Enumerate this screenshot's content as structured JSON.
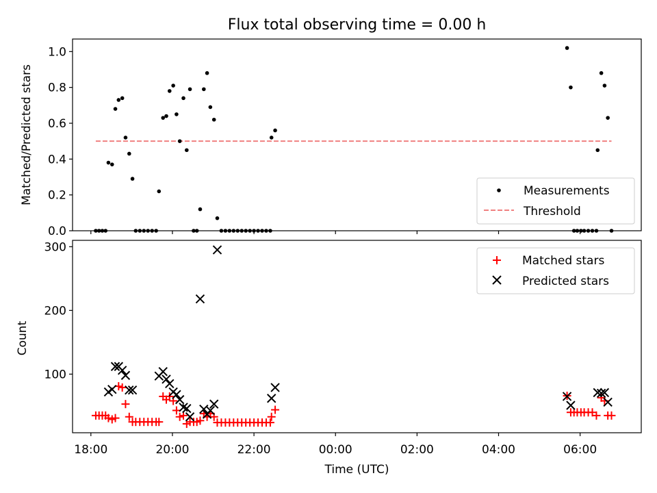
{
  "figure": {
    "title": "Flux total observing time = 0.00 h"
  },
  "chart_data": [
    {
      "type": "scatter",
      "panel": "top",
      "xlabel": "",
      "ylabel": "Matched/Predicted stars",
      "xlim": [
        17.55,
        31.5
      ],
      "ylim": [
        0,
        1.07
      ],
      "yticks": [
        0.0,
        0.2,
        0.4,
        0.6,
        0.8,
        1.0
      ],
      "ytick_labels": [
        "0.0",
        "0.2",
        "0.4",
        "0.6",
        "0.8",
        "1.0"
      ],
      "xticks": [
        18,
        20,
        22,
        24,
        26,
        28,
        30
      ],
      "show_xtick_labels": false,
      "grid": false,
      "legend": {
        "placement": "lower right",
        "entries": [
          "Measurements",
          "Threshold"
        ]
      },
      "threshold": {
        "name": "Threshold",
        "value": 0.5,
        "x_range": [
          18.12,
          30.77
        ],
        "color": "#f08080"
      },
      "series": [
        {
          "name": "Measurements",
          "color": "#000000",
          "points": [
            [
              18.12,
              0.0
            ],
            [
              18.2,
              0.0
            ],
            [
              18.28,
              0.0
            ],
            [
              18.36,
              0.0
            ],
            [
              18.43,
              0.38
            ],
            [
              18.52,
              0.37
            ],
            [
              18.6,
              0.68
            ],
            [
              18.68,
              0.73
            ],
            [
              18.77,
              0.74
            ],
            [
              18.85,
              0.52
            ],
            [
              18.94,
              0.43
            ],
            [
              19.02,
              0.29
            ],
            [
              19.1,
              0.0
            ],
            [
              19.2,
              0.0
            ],
            [
              19.3,
              0.0
            ],
            [
              19.4,
              0.0
            ],
            [
              19.5,
              0.0
            ],
            [
              19.6,
              0.0
            ],
            [
              19.67,
              0.22
            ],
            [
              19.77,
              0.63
            ],
            [
              19.85,
              0.64
            ],
            [
              19.93,
              0.78
            ],
            [
              20.02,
              0.81
            ],
            [
              20.1,
              0.65
            ],
            [
              20.18,
              0.5
            ],
            [
              20.27,
              0.74
            ],
            [
              20.35,
              0.45
            ],
            [
              20.43,
              0.79
            ],
            [
              20.52,
              0.0
            ],
            [
              20.6,
              0.0
            ],
            [
              20.68,
              0.12
            ],
            [
              20.77,
              0.79
            ],
            [
              20.85,
              0.88
            ],
            [
              20.93,
              0.69
            ],
            [
              21.02,
              0.62
            ],
            [
              21.1,
              0.07
            ],
            [
              21.2,
              0.0
            ],
            [
              21.3,
              0.0
            ],
            [
              21.4,
              0.0
            ],
            [
              21.5,
              0.0
            ],
            [
              21.6,
              0.0
            ],
            [
              21.7,
              0.0
            ],
            [
              21.8,
              0.0
            ],
            [
              21.9,
              0.0
            ],
            [
              22.0,
              0.0
            ],
            [
              22.1,
              0.0
            ],
            [
              22.2,
              0.0
            ],
            [
              22.3,
              0.0
            ],
            [
              22.4,
              0.0
            ],
            [
              22.43,
              0.52
            ],
            [
              22.52,
              0.56
            ],
            [
              29.68,
              1.02
            ],
            [
              29.77,
              0.8
            ],
            [
              29.85,
              0.0
            ],
            [
              29.93,
              0.0
            ],
            [
              30.02,
              0.0
            ],
            [
              30.1,
              0.0
            ],
            [
              30.2,
              0.0
            ],
            [
              30.3,
              0.0
            ],
            [
              30.4,
              0.0
            ],
            [
              30.43,
              0.45
            ],
            [
              30.52,
              0.88
            ],
            [
              30.6,
              0.81
            ],
            [
              30.68,
              0.63
            ],
            [
              30.77,
              0.0
            ]
          ]
        }
      ]
    },
    {
      "type": "scatter",
      "panel": "bottom",
      "xlabel": "Time (UTC)",
      "ylabel": "Count",
      "xlim": [
        17.55,
        31.5
      ],
      "ylim": [
        8,
        310
      ],
      "yticks": [
        100,
        200,
        300
      ],
      "ytick_labels": [
        "100",
        "200",
        "300"
      ],
      "xticks": [
        18,
        20,
        22,
        24,
        26,
        28,
        30
      ],
      "xtick_labels": [
        "18:00",
        "20:00",
        "22:00",
        "00:00",
        "02:00",
        "04:00",
        "06:00"
      ],
      "grid": false,
      "legend": {
        "placement": "upper right",
        "entries": [
          "Matched stars",
          "Predicted stars"
        ]
      },
      "series": [
        {
          "name": "Matched stars",
          "marker": "plus",
          "color": "#ff0000",
          "points": [
            [
              18.12,
              35
            ],
            [
              18.2,
              35
            ],
            [
              18.28,
              35
            ],
            [
              18.36,
              35
            ],
            [
              18.43,
              31
            ],
            [
              18.52,
              29
            ],
            [
              18.6,
              31
            ],
            [
              18.68,
              81
            ],
            [
              18.77,
              79
            ],
            [
              18.85,
              53
            ],
            [
              18.94,
              33
            ],
            [
              19.02,
              25
            ],
            [
              19.1,
              25
            ],
            [
              19.2,
              25
            ],
            [
              19.3,
              25
            ],
            [
              19.4,
              25
            ],
            [
              19.5,
              25
            ],
            [
              19.6,
              25
            ],
            [
              19.67,
              25
            ],
            [
              19.77,
              65
            ],
            [
              19.85,
              60
            ],
            [
              19.93,
              65
            ],
            [
              20.02,
              58
            ],
            [
              20.1,
              43
            ],
            [
              20.18,
              33
            ],
            [
              20.27,
              35
            ],
            [
              20.35,
              22
            ],
            [
              20.43,
              25
            ],
            [
              20.52,
              25
            ],
            [
              20.6,
              25
            ],
            [
              20.68,
              27
            ],
            [
              20.77,
              38
            ],
            [
              20.85,
              33
            ],
            [
              20.93,
              38
            ],
            [
              21.02,
              33
            ],
            [
              21.1,
              24
            ],
            [
              21.2,
              24
            ],
            [
              21.3,
              24
            ],
            [
              21.4,
              24
            ],
            [
              21.5,
              24
            ],
            [
              21.6,
              24
            ],
            [
              21.7,
              24
            ],
            [
              21.8,
              24
            ],
            [
              21.9,
              24
            ],
            [
              22.0,
              24
            ],
            [
              22.1,
              24
            ],
            [
              22.2,
              24
            ],
            [
              22.3,
              24
            ],
            [
              22.4,
              24
            ],
            [
              22.43,
              33
            ],
            [
              22.52,
              44
            ],
            [
              29.68,
              66
            ],
            [
              29.77,
              40
            ],
            [
              29.85,
              40
            ],
            [
              29.93,
              40
            ],
            [
              30.02,
              40
            ],
            [
              30.1,
              40
            ],
            [
              30.2,
              40
            ],
            [
              30.3,
              40
            ],
            [
              30.4,
              35
            ],
            [
              30.52,
              63
            ],
            [
              30.6,
              58
            ],
            [
              30.68,
              35
            ],
            [
              30.77,
              35
            ]
          ]
        },
        {
          "name": "Predicted stars",
          "marker": "x",
          "color": "#000000",
          "points": [
            [
              18.43,
              72
            ],
            [
              18.52,
              76
            ],
            [
              18.6,
              112
            ],
            [
              18.68,
              112
            ],
            [
              18.77,
              106
            ],
            [
              18.85,
              98
            ],
            [
              18.94,
              75
            ],
            [
              19.02,
              75
            ],
            [
              19.67,
              97
            ],
            [
              19.77,
              104
            ],
            [
              19.85,
              92
            ],
            [
              19.93,
              85
            ],
            [
              20.02,
              72
            ],
            [
              20.1,
              68
            ],
            [
              20.18,
              60
            ],
            [
              20.27,
              48
            ],
            [
              20.35,
              46
            ],
            [
              20.43,
              33
            ],
            [
              20.68,
              218
            ],
            [
              20.77,
              45
            ],
            [
              20.85,
              37
            ],
            [
              20.93,
              43
            ],
            [
              21.02,
              53
            ],
            [
              21.1,
              295
            ],
            [
              22.43,
              62
            ],
            [
              22.52,
              79
            ],
            [
              29.68,
              65
            ],
            [
              29.77,
              51
            ],
            [
              30.43,
              71
            ],
            [
              30.52,
              70
            ],
            [
              30.6,
              71
            ],
            [
              30.68,
              56
            ]
          ]
        }
      ]
    }
  ]
}
